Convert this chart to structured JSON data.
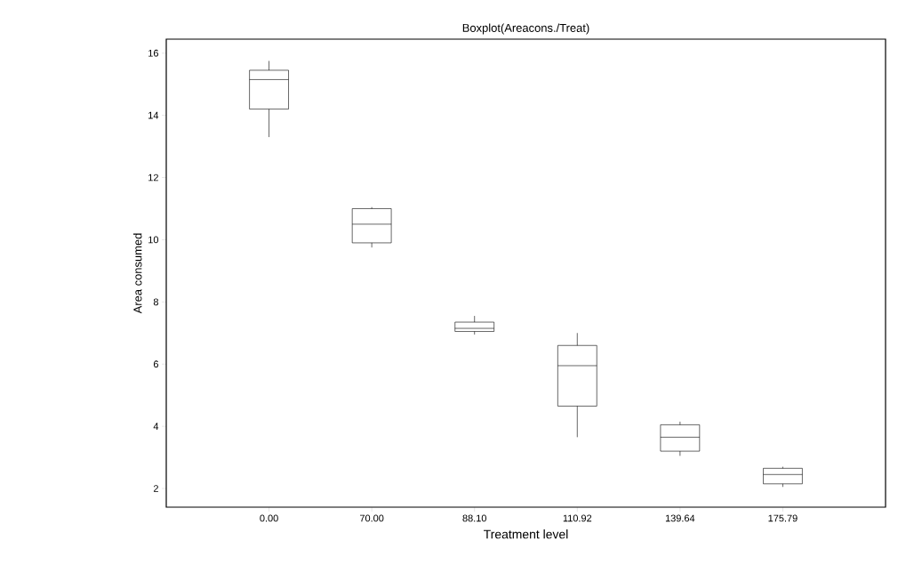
{
  "chart_data": {
    "type": "box",
    "title": "Boxplot(Areacons./Treat)",
    "xlabel": "Treatment level",
    "ylabel": "Area consumed",
    "categories": [
      "0.00",
      "70.00",
      "88.10",
      "110.92",
      "139.64",
      "175.79"
    ],
    "boxes": [
      {
        "low": 13.3,
        "q1": 14.2,
        "median": 15.15,
        "q3": 15.45,
        "high": 15.75
      },
      {
        "low": 9.75,
        "q1": 9.9,
        "median": 10.5,
        "q3": 11.0,
        "high": 11.05
      },
      {
        "low": 6.95,
        "q1": 7.05,
        "median": 7.15,
        "q3": 7.35,
        "high": 7.55
      },
      {
        "low": 3.65,
        "q1": 4.65,
        "median": 5.95,
        "q3": 6.6,
        "high": 7.0
      },
      {
        "low": 3.05,
        "q1": 3.2,
        "median": 3.65,
        "q3": 4.05,
        "high": 4.15
      },
      {
        "low": 2.05,
        "q1": 2.15,
        "median": 2.45,
        "q3": 2.65,
        "high": 2.7
      }
    ],
    "color": "#000000",
    "ylim": [
      1.4,
      16.45
    ],
    "yticks": [
      2,
      4,
      6,
      8,
      10,
      12,
      14,
      16
    ]
  }
}
